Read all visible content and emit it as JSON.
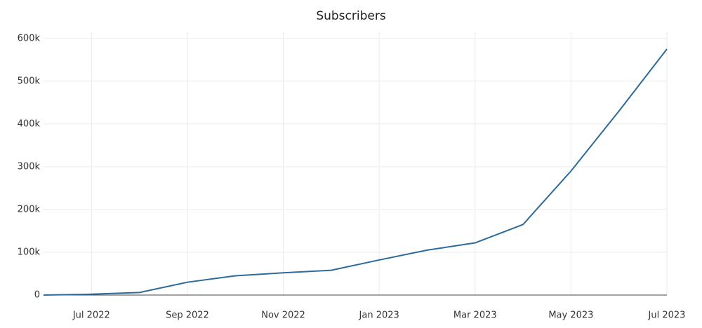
{
  "chart_data": {
    "type": "line",
    "title": "Subscribers",
    "x": [
      "2022-06",
      "2022-07",
      "2022-08",
      "2022-09",
      "2022-10",
      "2022-11",
      "2022-12",
      "2023-01",
      "2023-02",
      "2023-03",
      "2023-04",
      "2023-05",
      "2023-06",
      "2023-07"
    ],
    "series": [
      {
        "name": "Subscribers",
        "color": "#2d6a9a",
        "values": [
          0,
          2000,
          6000,
          30000,
          45000,
          52000,
          58000,
          82000,
          105000,
          122000,
          165000,
          290000,
          430000,
          575000
        ]
      }
    ],
    "xlim": [
      "2022-06",
      "2023-07"
    ],
    "xticks": [
      {
        "value": "2022-07",
        "label": "Jul 2022"
      },
      {
        "value": "2022-09",
        "label": "Sep 2022"
      },
      {
        "value": "2022-11",
        "label": "Nov 2022"
      },
      {
        "value": "2023-01",
        "label": "Jan 2023"
      },
      {
        "value": "2023-03",
        "label": "Mar 2023"
      },
      {
        "value": "2023-05",
        "label": "May 2023"
      },
      {
        "value": "2023-07",
        "label": "Jul 2023"
      }
    ],
    "ylim": [
      0,
      616000
    ],
    "yticks": [
      0,
      {
        "value": 100000,
        "label": "100k"
      },
      {
        "value": 200000,
        "label": "200k"
      },
      {
        "value": 300000,
        "label": "300k"
      },
      {
        "value": 400000,
        "label": "400k"
      },
      {
        "value": 500000,
        "label": "500k"
      },
      {
        "value": 600000,
        "label": "600k"
      }
    ],
    "grid": true
  }
}
